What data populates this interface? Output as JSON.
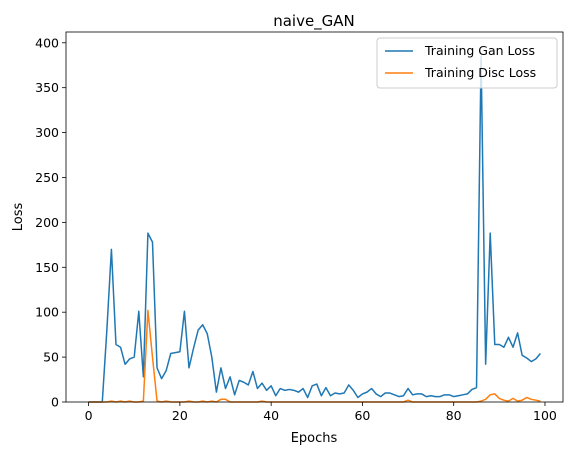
{
  "chart_data": {
    "type": "line",
    "title": "naive_GAN",
    "xlabel": "Epochs",
    "ylabel": "Loss",
    "xlim": [
      -4.95,
      103.95
    ],
    "ylim": [
      0,
      412
    ],
    "xticks": [
      0,
      20,
      40,
      60,
      80,
      100
    ],
    "yticks": [
      0,
      50,
      100,
      150,
      200,
      250,
      300,
      350,
      400
    ],
    "grid": false,
    "legend_position": "top-right",
    "series": [
      {
        "name": "Training Gan Loss",
        "color": "#1f77b4",
        "x": [
          0,
          1,
          2,
          3,
          4,
          5,
          6,
          7,
          8,
          9,
          10,
          11,
          12,
          13,
          14,
          15,
          16,
          17,
          18,
          19,
          20,
          21,
          22,
          23,
          24,
          25,
          26,
          27,
          28,
          29,
          30,
          31,
          32,
          33,
          34,
          35,
          36,
          37,
          38,
          39,
          40,
          41,
          42,
          43,
          44,
          45,
          46,
          47,
          48,
          49,
          50,
          51,
          52,
          53,
          54,
          55,
          56,
          57,
          58,
          59,
          60,
          61,
          62,
          63,
          64,
          65,
          66,
          67,
          68,
          69,
          70,
          71,
          72,
          73,
          74,
          75,
          76,
          77,
          78,
          79,
          80,
          81,
          82,
          83,
          84,
          85,
          86,
          87,
          88,
          89,
          90,
          91,
          92,
          93,
          94,
          95,
          96,
          97,
          98,
          99
        ],
        "values": [
          0,
          0,
          0,
          0,
          80,
          170,
          64,
          61,
          42,
          48,
          50,
          101,
          28,
          188,
          178,
          38,
          26,
          35,
          54,
          55,
          56,
          101,
          38,
          60,
          80,
          86,
          76,
          50,
          11,
          38,
          15,
          28,
          8,
          24,
          22,
          19,
          34,
          15,
          21,
          13,
          18,
          7,
          15,
          13,
          14,
          13,
          11,
          15,
          5,
          18,
          20,
          7,
          16,
          7,
          10,
          9,
          10,
          19,
          13,
          5,
          9,
          11,
          15,
          9,
          6,
          10,
          10,
          8,
          6,
          7,
          15,
          8,
          9,
          9,
          6,
          7,
          6,
          6,
          8,
          8,
          6,
          7,
          8,
          9,
          14,
          16,
          385,
          42,
          188,
          64,
          64,
          61,
          72,
          61,
          77,
          52,
          49,
          45,
          48,
          54
        ]
      },
      {
        "name": "Training Disc Loss",
        "color": "#ff7f0e",
        "x": [
          0,
          1,
          2,
          3,
          4,
          5,
          6,
          7,
          8,
          9,
          10,
          11,
          12,
          13,
          14,
          15,
          16,
          17,
          18,
          19,
          20,
          21,
          22,
          23,
          24,
          25,
          26,
          27,
          28,
          29,
          30,
          31,
          32,
          33,
          34,
          35,
          36,
          37,
          38,
          39,
          40,
          41,
          42,
          43,
          44,
          45,
          46,
          47,
          48,
          49,
          50,
          51,
          52,
          53,
          54,
          55,
          56,
          57,
          58,
          59,
          60,
          61,
          62,
          63,
          64,
          65,
          66,
          67,
          68,
          69,
          70,
          71,
          72,
          73,
          74,
          75,
          76,
          77,
          78,
          79,
          80,
          81,
          82,
          83,
          84,
          85,
          86,
          87,
          88,
          89,
          90,
          91,
          92,
          93,
          94,
          95,
          96,
          97,
          98,
          99
        ],
        "values": [
          0,
          0,
          0,
          0,
          0,
          1,
          0,
          1,
          0,
          1,
          0,
          0,
          1,
          102,
          50,
          1,
          0,
          1,
          0,
          0,
          0,
          0,
          1,
          0,
          0,
          1,
          0,
          1,
          0,
          3,
          3,
          0,
          0,
          0,
          0,
          0,
          0,
          0,
          1,
          0,
          0,
          0,
          0,
          0,
          0,
          0,
          0,
          0,
          0,
          0,
          0,
          0,
          0,
          0,
          0,
          0,
          0,
          0,
          0,
          0,
          0,
          0,
          0,
          0,
          0,
          0,
          0,
          0,
          0,
          0,
          2,
          0,
          0,
          0,
          0,
          0,
          0,
          0,
          0,
          0,
          0,
          0,
          0,
          0,
          0,
          0,
          1,
          3,
          8,
          9,
          4,
          2,
          1,
          4,
          1,
          2,
          5,
          3,
          2,
          1
        ]
      }
    ]
  }
}
